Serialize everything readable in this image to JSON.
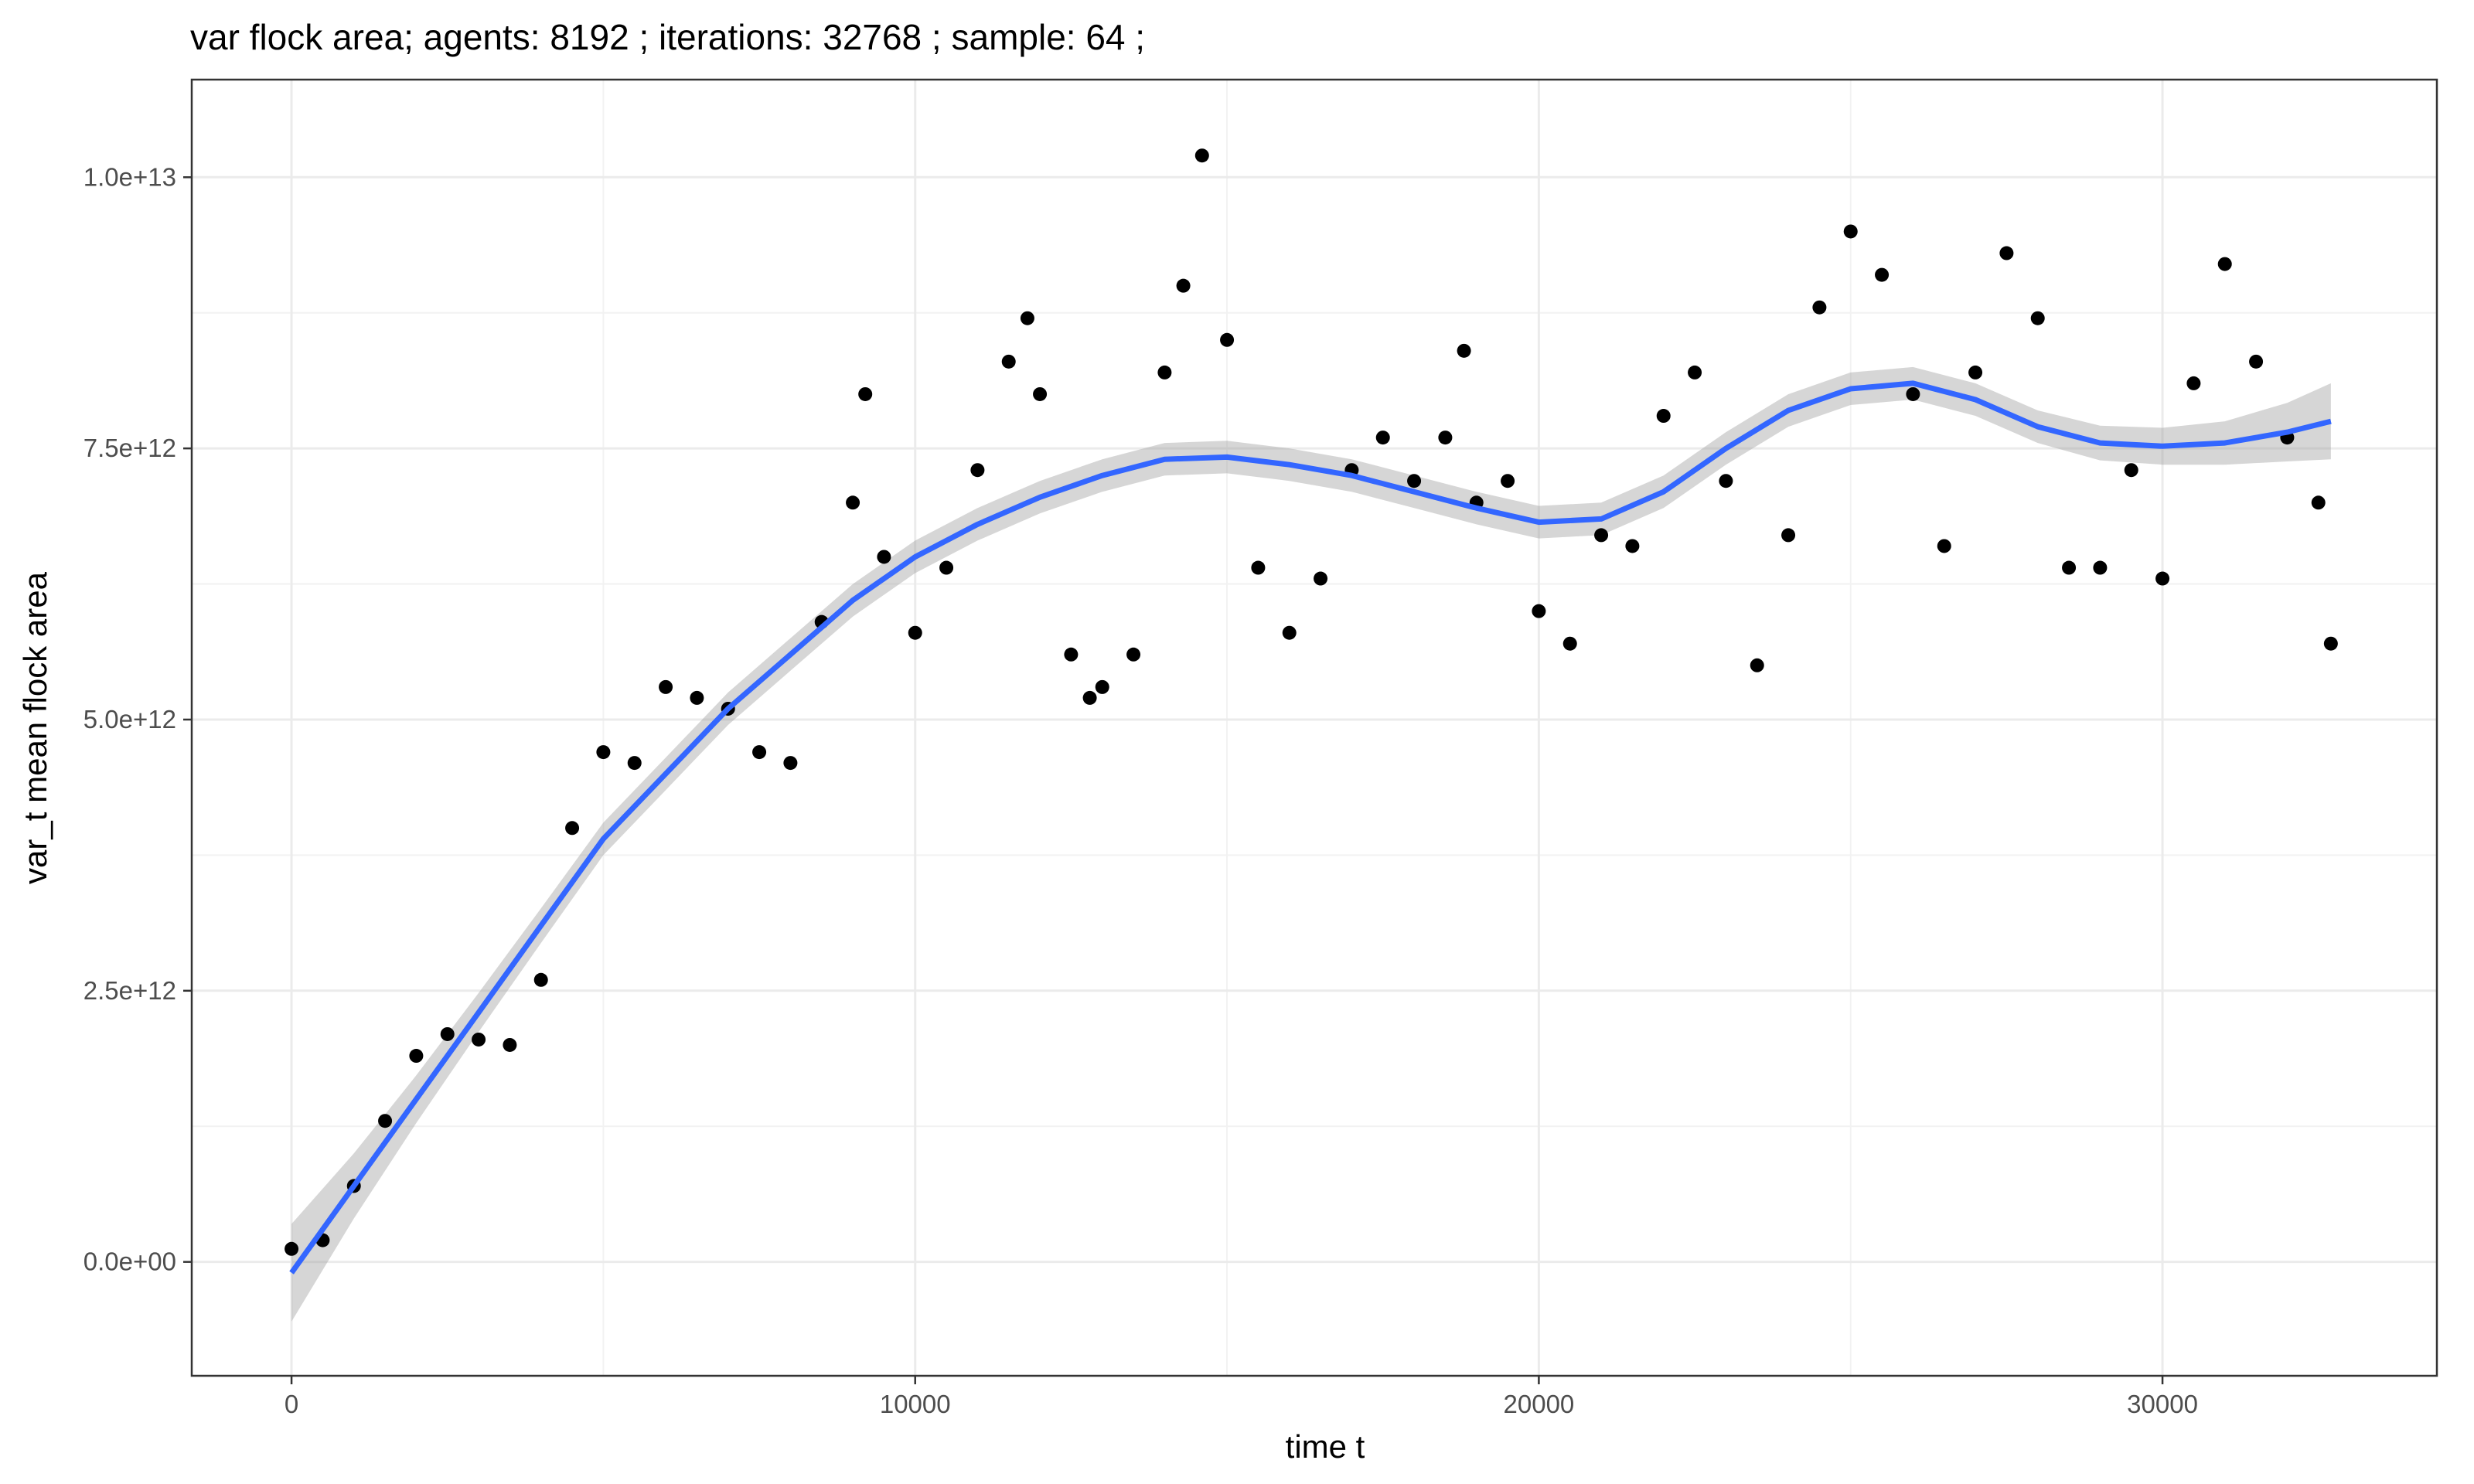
{
  "chart_data": {
    "type": "scatter",
    "title": "var flock area; agents: 8192 ; iterations: 32768 ; sample: 64 ;",
    "xlabel": "time t",
    "ylabel": "var_t mean flock area",
    "xlim": [
      -1600,
      34400
    ],
    "ylim": [
      -1050000000000.0,
      10900000000000.0
    ],
    "x_ticks": [
      0,
      10000,
      20000,
      30000
    ],
    "x_tick_labels": [
      "0",
      "10000",
      "20000",
      "30000"
    ],
    "y_ticks": [
      0,
      2500000000000.0,
      5000000000000.0,
      7500000000000.0,
      10000000000000.0
    ],
    "y_tick_labels": [
      "0.0e+00",
      "2.5e+12",
      "5.0e+12",
      "7.5e+12",
      "1.0e+13"
    ],
    "grid": true,
    "colors": {
      "points": "#000000",
      "smooth_line": "#3366FF",
      "ribbon": "#999999",
      "grid": "#ebebeb",
      "panel_border": "#333333"
    },
    "series": [
      {
        "kind": "points",
        "x": [
          0,
          500,
          1000,
          1500,
          2000,
          2500,
          3000,
          3500,
          4000,
          4500,
          5000,
          5500,
          6000,
          6500,
          7000,
          7500,
          8000,
          8500,
          9000,
          9200,
          9500,
          10000,
          10500,
          11000,
          11500,
          11800,
          12000,
          12500,
          12800,
          13000,
          13500,
          14000,
          14300,
          14600,
          15000,
          15500,
          16000,
          16500,
          17000,
          17500,
          18000,
          18500,
          18800,
          19000,
          19500,
          20000,
          20500,
          21000,
          21500,
          22000,
          22500,
          23000,
          23500,
          24000,
          24500,
          25000,
          25500,
          26000,
          26500,
          27000,
          27500,
          28000,
          28500,
          29000,
          29500,
          30000,
          30500,
          31000,
          31500,
          32000,
          32500,
          32700
        ],
        "y": [
          120000000000.0,
          200000000000.0,
          700000000000.0,
          1300000000000.0,
          1900000000000.0,
          2100000000000.0,
          2050000000000.0,
          2000000000000.0,
          2600000000000.0,
          4000000000000.0,
          4700000000000.0,
          4600000000000.0,
          5300000000000.0,
          5200000000000.0,
          5100000000000.0,
          4700000000000.0,
          4600000000000.0,
          5900000000000.0,
          7000000000000.0,
          8000000000000.0,
          6500000000000.0,
          5800000000000.0,
          6400000000000.0,
          7300000000000.0,
          8300000000000.0,
          8700000000000.0,
          8000000000000.0,
          5600000000000.0,
          5200000000000.0,
          5300000000000.0,
          5600000000000.0,
          8200000000000.0,
          9000000000000.0,
          10200000000000.0,
          8500000000000.0,
          6400000000000.0,
          5800000000000.0,
          6300000000000.0,
          7300000000000.0,
          7600000000000.0,
          7200000000000.0,
          7600000000000.0,
          8400000000000.0,
          7000000000000.0,
          7200000000000.0,
          6000000000000.0,
          5700000000000.0,
          6700000000000.0,
          6600000000000.0,
          7800000000000.0,
          8200000000000.0,
          7200000000000.0,
          5500000000000.0,
          6700000000000.0,
          8800000000000.0,
          9500000000000.0,
          9100000000000.0,
          8000000000000.0,
          6600000000000.0,
          8200000000000.0,
          9300000000000.0,
          8700000000000.0,
          6400000000000.0,
          6400000000000.0,
          7300000000000.0,
          6300000000000.0,
          8100000000000.0,
          9200000000000.0,
          8300000000000.0,
          7600000000000.0,
          7000000000000.0,
          5700000000000.0
        ]
      },
      {
        "kind": "smooth",
        "x": [
          0,
          1000,
          2000,
          3000,
          4000,
          5000,
          6000,
          7000,
          8000,
          9000,
          10000,
          11000,
          12000,
          13000,
          14000,
          15000,
          16000,
          17000,
          18000,
          19000,
          20000,
          21000,
          22000,
          23000,
          24000,
          25000,
          26000,
          27000,
          28000,
          29000,
          30000,
          31000,
          32000,
          32700
        ],
        "y": [
          -100000000000.0,
          700000000000.0,
          1500000000000.0,
          2300000000000.0,
          3100000000000.0,
          3900000000000.0,
          4500000000000.0,
          5100000000000.0,
          5600000000000.0,
          6100000000000.0,
          6500000000000.0,
          6800000000000.0,
          7050000000000.0,
          7250000000000.0,
          7400000000000.0,
          7420000000000.0,
          7350000000000.0,
          7250000000000.0,
          7100000000000.0,
          6950000000000.0,
          6820000000000.0,
          6850000000000.0,
          7100000000000.0,
          7500000000000.0,
          7850000000000.0,
          8050000000000.0,
          8100000000000.0,
          7950000000000.0,
          7700000000000.0,
          7550000000000.0,
          7520000000000.0,
          7550000000000.0,
          7650000000000.0,
          7750000000000.0
        ],
        "ribbon_halfwidth": [
          450000000000.0,
          300000000000.0,
          220000000000.0,
          180000000000.0,
          160000000000.0,
          150000000000.0,
          150000000000.0,
          150000000000.0,
          150000000000.0,
          150000000000.0,
          150000000000.0,
          150000000000.0,
          150000000000.0,
          150000000000.0,
          150000000000.0,
          150000000000.0,
          150000000000.0,
          150000000000.0,
          150000000000.0,
          150000000000.0,
          150000000000.0,
          150000000000.0,
          150000000000.0,
          150000000000.0,
          150000000000.0,
          150000000000.0,
          150000000000.0,
          150000000000.0,
          150000000000.0,
          160000000000.0,
          170000000000.0,
          200000000000.0,
          270000000000.0,
          350000000000.0
        ]
      }
    ]
  }
}
